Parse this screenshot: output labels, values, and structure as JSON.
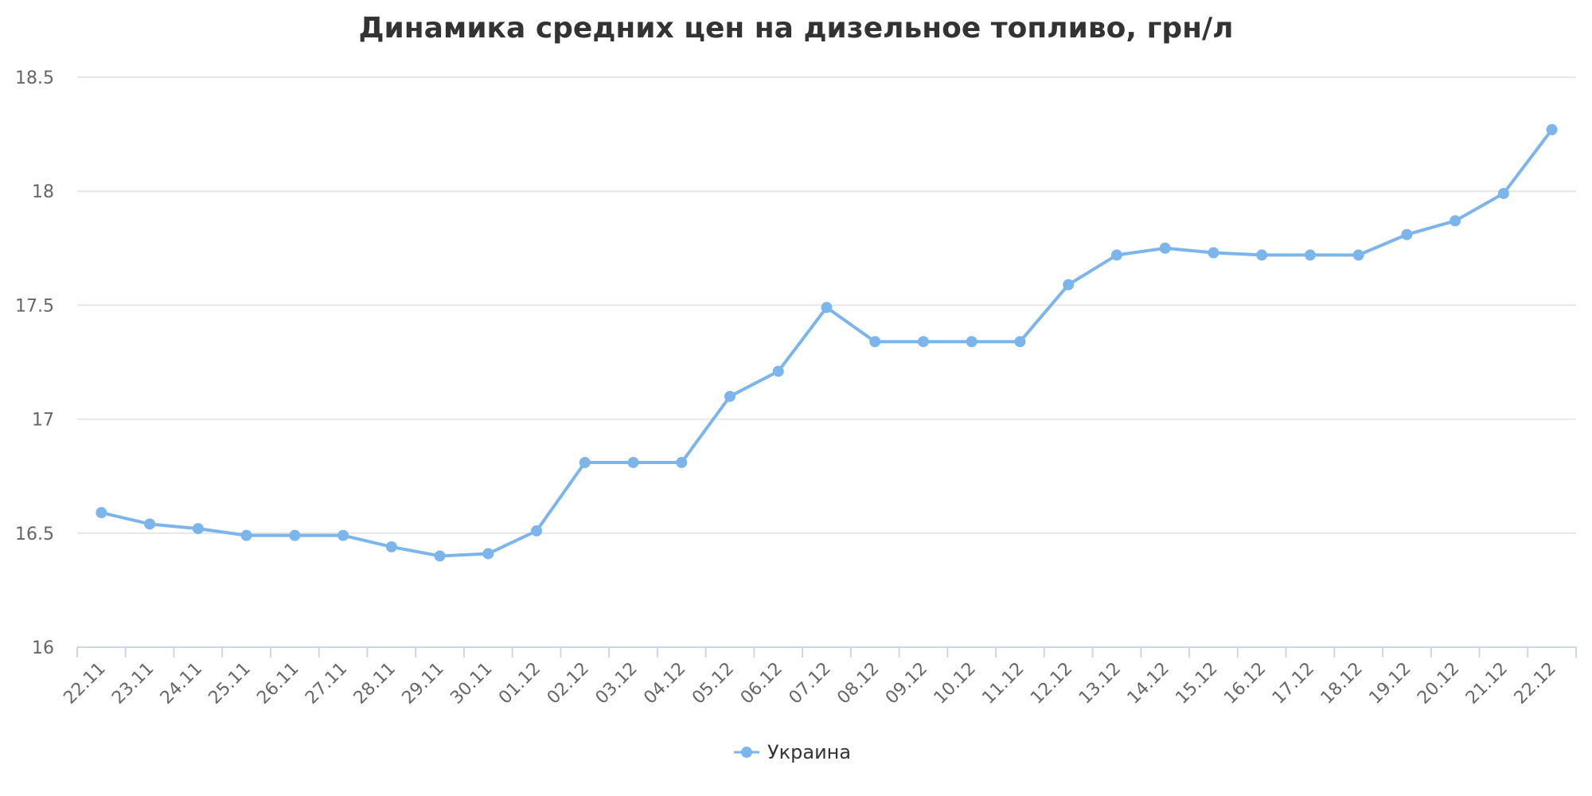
{
  "colors": {
    "series": "#7cb5ec",
    "grid": "#e6e6e6",
    "axis": "#ccd6eb"
  },
  "chart_data": {
    "type": "line",
    "title": "Динамика средних цен на дизельное топливо, грн/л",
    "xlabel": "",
    "ylabel": "",
    "ylim": [
      16,
      18.5
    ],
    "yticks": [
      "16",
      "16.5",
      "17",
      "17.5",
      "18",
      "18.5"
    ],
    "grid": true,
    "legend_position": "bottom-center",
    "categories": [
      "22.11",
      "23.11",
      "24.11",
      "25.11",
      "26.11",
      "27.11",
      "28.11",
      "29.11",
      "30.11",
      "01.12",
      "02.12",
      "03.12",
      "04.12",
      "05.12",
      "06.12",
      "07.12",
      "08.12",
      "09.12",
      "10.12",
      "11.12",
      "12.12",
      "13.12",
      "14.12",
      "15.12",
      "16.12",
      "17.12",
      "18.12",
      "19.12",
      "20.12",
      "21.12",
      "22.12"
    ],
    "series": [
      {
        "name": "Украина",
        "values": [
          16.59,
          16.54,
          16.52,
          16.49,
          16.49,
          16.49,
          16.44,
          16.4,
          16.41,
          16.51,
          16.81,
          16.81,
          16.81,
          17.1,
          17.21,
          17.49,
          17.34,
          17.34,
          17.34,
          17.34,
          17.59,
          17.72,
          17.75,
          17.73,
          17.72,
          17.72,
          17.72,
          17.81,
          17.87,
          17.99,
          18.27
        ]
      }
    ]
  }
}
